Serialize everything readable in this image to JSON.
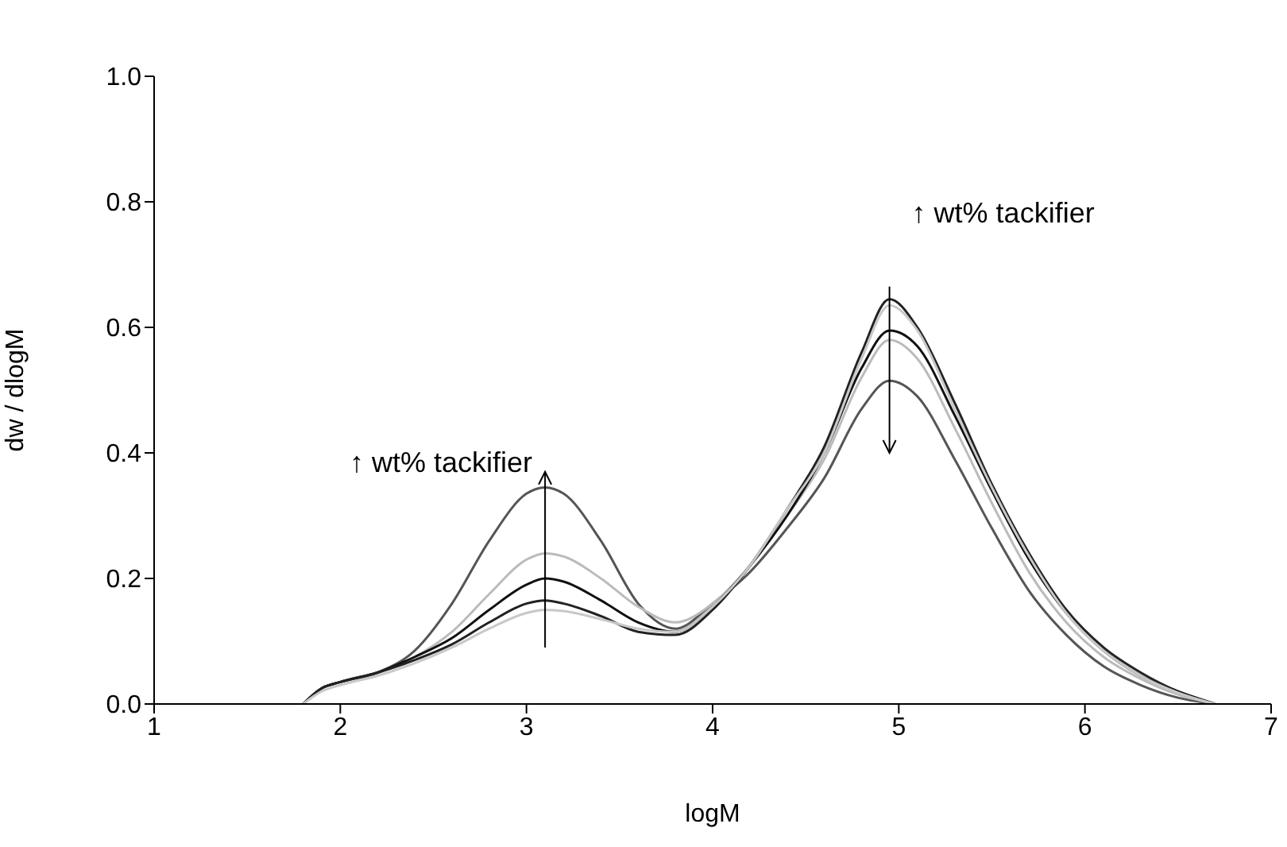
{
  "chart_data": {
    "type": "line",
    "xlabel": "logM",
    "ylabel": "dw / dlogM",
    "xlim": [
      1,
      7
    ],
    "xticks": [
      1,
      2,
      3,
      4,
      5,
      6,
      7
    ],
    "ylim": [
      0,
      1
    ],
    "yticks": [
      {
        "value": 0,
        "label": "0.0"
      },
      {
        "value": 0.2,
        "label": "0.2"
      },
      {
        "value": 0.4,
        "label": "0.4"
      },
      {
        "value": 0.6,
        "label": "0.6"
      },
      {
        "value": 0.8,
        "label": "0.8"
      },
      {
        "value": 1,
        "label": "1.0"
      }
    ],
    "grid": false,
    "legend": false,
    "marker": "none",
    "line_style": "solid",
    "x": [
      1.8,
      1.9,
      2.0,
      2.2,
      2.4,
      2.6,
      2.8,
      3.0,
      3.1,
      3.2,
      3.4,
      3.6,
      3.8,
      4.0,
      4.2,
      4.4,
      4.6,
      4.8,
      4.95,
      5.1,
      5.3,
      5.5,
      5.7,
      5.9,
      6.1,
      6.3,
      6.5,
      6.7
    ],
    "series": [
      {
        "color": "#555555",
        "values": [
          0,
          0.025,
          0.035,
          0.05,
          0.085,
          0.16,
          0.26,
          0.335,
          0.345,
          0.335,
          0.26,
          0.16,
          0.12,
          0.16,
          0.21,
          0.28,
          0.36,
          0.47,
          0.515,
          0.49,
          0.39,
          0.28,
          0.18,
          0.11,
          0.06,
          0.03,
          0.01,
          0
        ]
      },
      {
        "color": "#bbbbbb",
        "values": [
          0,
          0.025,
          0.035,
          0.05,
          0.075,
          0.115,
          0.175,
          0.23,
          0.24,
          0.235,
          0.2,
          0.155,
          0.13,
          0.16,
          0.22,
          0.3,
          0.39,
          0.52,
          0.58,
          0.55,
          0.44,
          0.32,
          0.21,
          0.13,
          0.075,
          0.04,
          0.015,
          0
        ]
      },
      {
        "color": "#111111",
        "values": [
          0,
          0.025,
          0.035,
          0.05,
          0.075,
          0.105,
          0.15,
          0.19,
          0.2,
          0.195,
          0.165,
          0.13,
          0.115,
          0.155,
          0.22,
          0.3,
          0.4,
          0.535,
          0.595,
          0.57,
          0.46,
          0.34,
          0.23,
          0.145,
          0.085,
          0.045,
          0.02,
          0
        ]
      },
      {
        "color": "#222222",
        "values": [
          0,
          0.025,
          0.035,
          0.05,
          0.07,
          0.095,
          0.13,
          0.16,
          0.165,
          0.16,
          0.14,
          0.115,
          0.11,
          0.15,
          0.22,
          0.31,
          0.41,
          0.56,
          0.645,
          0.6,
          0.48,
          0.35,
          0.24,
          0.15,
          0.09,
          0.05,
          0.02,
          0
        ]
      },
      {
        "color": "#c8c8c8",
        "values": [
          0,
          0.02,
          0.03,
          0.045,
          0.065,
          0.09,
          0.12,
          0.145,
          0.15,
          0.148,
          0.135,
          0.12,
          0.115,
          0.155,
          0.22,
          0.31,
          0.4,
          0.55,
          0.635,
          0.595,
          0.47,
          0.345,
          0.235,
          0.145,
          0.085,
          0.045,
          0.018,
          0
        ]
      }
    ],
    "annotations": [
      {
        "text": "↑ wt% tackifier",
        "x": 3.1,
        "y": 0.35
      },
      {
        "text": "↑ wt% tackifier",
        "x": 4.95,
        "y": 0.64
      }
    ]
  }
}
